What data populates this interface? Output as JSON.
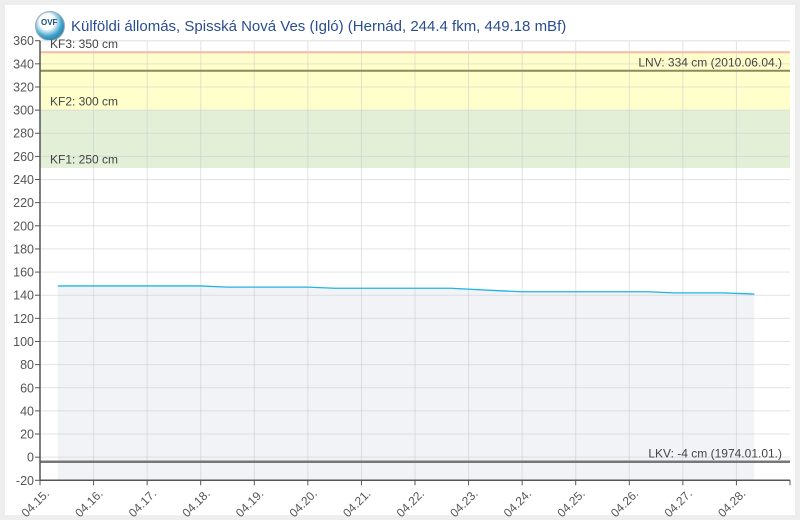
{
  "title": "Külföldi állomás, Spisská Nová Ves (Igló) (Hernád, 244.4 fkm, 449.18 mBf)",
  "logo_text": "OVF",
  "chart_data": {
    "type": "area",
    "title": "Külföldi állomás, Spisská Nová Ves (Igló) (Hernád, 244.4 fkm, 449.18 mBf)",
    "xlabel": "",
    "ylabel": "",
    "ylim": [
      -20,
      360
    ],
    "xlim": [
      "04.15. 00:00",
      "04.29. 00:00"
    ],
    "grid": true,
    "y_ticks": [
      "-20",
      "0",
      "20",
      "40",
      "60",
      "80",
      "100",
      "120",
      "140",
      "160",
      "180",
      "200",
      "220",
      "240",
      "260",
      "280",
      "300",
      "320",
      "340",
      "360"
    ],
    "x_ticks": [
      "04.15.",
      "04.16.",
      "04.17.",
      "04.18.",
      "04.19.",
      "04.20.",
      "04.21.",
      "04.22.",
      "04.23.",
      "04.24.",
      "04.25.",
      "04.26.",
      "04.27.",
      "04.28."
    ],
    "series": [
      {
        "color": "#1fb5e6",
        "fill": "#f2f3f7",
        "points": [
          {
            "x": "04.15. 08:00",
            "y": 148
          },
          {
            "x": "04.18. 00:00",
            "y": 148
          },
          {
            "x": "04.18. 12:00",
            "y": 147
          },
          {
            "x": "04.20. 00:00",
            "y": 147
          },
          {
            "x": "04.20. 12:00",
            "y": 146
          },
          {
            "x": "04.22. 16:00",
            "y": 146
          },
          {
            "x": "04.23. 12:00",
            "y": 144
          },
          {
            "x": "04.24. 00:00",
            "y": 143
          },
          {
            "x": "04.26. 08:00",
            "y": 143
          },
          {
            "x": "04.26. 20:00",
            "y": 142
          },
          {
            "x": "04.27. 18:00",
            "y": 142
          },
          {
            "x": "04.28. 08:00",
            "y": 141
          }
        ]
      }
    ],
    "bands": [
      {
        "from": 250,
        "to": 300,
        "color": "#e3efd6"
      },
      {
        "from": 300,
        "to": 350,
        "color": "#ffffcc"
      }
    ],
    "reference_lines": [
      {
        "value": 350,
        "label": "KF3: 350 cm",
        "color": "#f7b9a6",
        "align": "left"
      },
      {
        "value": 300,
        "label": "KF2: 300 cm",
        "color": "none",
        "align": "left"
      },
      {
        "value": 250,
        "label": "KF1: 250 cm",
        "color": "none",
        "align": "left"
      },
      {
        "value": 334,
        "label": "LNV: 334 cm (2010.06.04.)",
        "color": "#8a8a5c",
        "align": "right"
      },
      {
        "value": -4,
        "label": "LKV: -4 cm (1974.01.01.)",
        "color": "#777777",
        "align": "right"
      }
    ]
  }
}
